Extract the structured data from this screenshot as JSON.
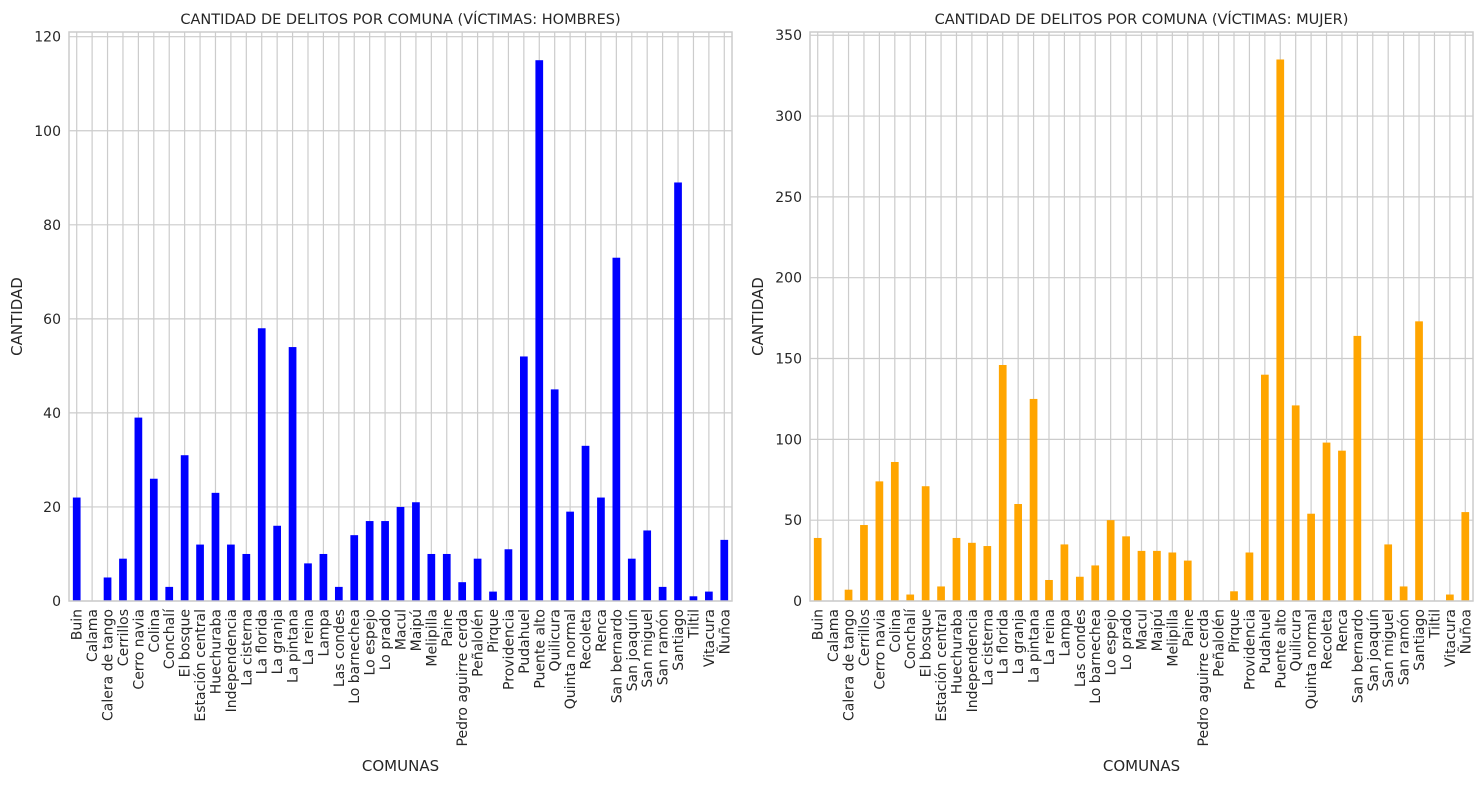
{
  "chart_data": [
    {
      "type": "bar",
      "title": "CANTIDAD DE DELITOS POR COMUNA (VÍCTIMAS: HOMBRES)",
      "xlabel": "COMUNAS",
      "ylabel": "CANTIDAD",
      "ylim": [
        0,
        121
      ],
      "yticks": [
        0,
        20,
        40,
        60,
        80,
        100,
        120
      ],
      "grid": true,
      "bar_color": "#0000ff",
      "categories": [
        "Buin",
        "Calama",
        "Calera de tango",
        "Cerrillos",
        "Cerro navia",
        "Colina",
        "Conchalí",
        "El bosque",
        "Estación central",
        "Huechuraba",
        "Independencia",
        "La cisterna",
        "La florida",
        "La granja",
        "La pintana",
        "La reina",
        "Lampa",
        "Las condes",
        "Lo barnechea",
        "Lo espejo",
        "Lo prado",
        "Macul",
        "Maipú",
        "Melipilla",
        "Paine",
        "Pedro  aguirre cerda",
        "Peñalolén",
        "Pirque",
        "Providencia",
        "Pudahuel",
        "Puente alto",
        "Quilicura",
        "Quinta normal",
        "Recoleta",
        "Renca",
        "San bernardo",
        "San joaquín",
        "San miguel",
        "San ramón",
        "Santiago",
        "Tiltil",
        "Vitacura",
        "Ñuñoa"
      ],
      "values": [
        22,
        0,
        5,
        9,
        39,
        26,
        3,
        31,
        12,
        23,
        12,
        10,
        58,
        16,
        54,
        8,
        10,
        3,
        14,
        17,
        17,
        20,
        21,
        10,
        10,
        4,
        9,
        2,
        11,
        52,
        115,
        45,
        19,
        33,
        22,
        73,
        9,
        15,
        3,
        89,
        1,
        2,
        13
      ]
    },
    {
      "type": "bar",
      "title": "CANTIDAD DE DELITOS POR COMUNA (VÍCTIMAS: MUJER)",
      "xlabel": "COMUNAS",
      "ylabel": "CANTIDAD",
      "ylim": [
        0,
        352
      ],
      "yticks": [
        0,
        50,
        100,
        150,
        200,
        250,
        300,
        350
      ],
      "grid": true,
      "bar_color": "#ffa500",
      "categories": [
        "Buin",
        "Calama",
        "Calera de tango",
        "Cerrillos",
        "Cerro navia",
        "Colina",
        "Conchalí",
        "El bosque",
        "Estación central",
        "Huechuraba",
        "Independencia",
        "La cisterna",
        "La florida",
        "La granja",
        "La pintana",
        "La reina",
        "Lampa",
        "Las condes",
        "Lo barnechea",
        "Lo espejo",
        "Lo prado",
        "Macul",
        "Maipú",
        "Melipilla",
        "Paine",
        "Pedro  aguirre cerda",
        "Peñalolén",
        "Pirque",
        "Providencia",
        "Pudahuel",
        "Puente alto",
        "Quilicura",
        "Quinta normal",
        "Recoleta",
        "Renca",
        "San bernardo",
        "San joaquín",
        "San miguel",
        "San ramón",
        "Santiago",
        "Tiltil",
        "Vitacura",
        "Ñuñoa"
      ],
      "values": [
        39,
        0,
        7,
        47,
        74,
        86,
        4,
        71,
        9,
        39,
        36,
        34,
        146,
        60,
        125,
        13,
        35,
        15,
        22,
        50,
        40,
        31,
        31,
        30,
        25,
        0,
        0,
        6,
        30,
        140,
        335,
        121,
        54,
        98,
        93,
        164,
        0,
        35,
        9,
        173,
        0,
        4,
        55
      ]
    }
  ]
}
